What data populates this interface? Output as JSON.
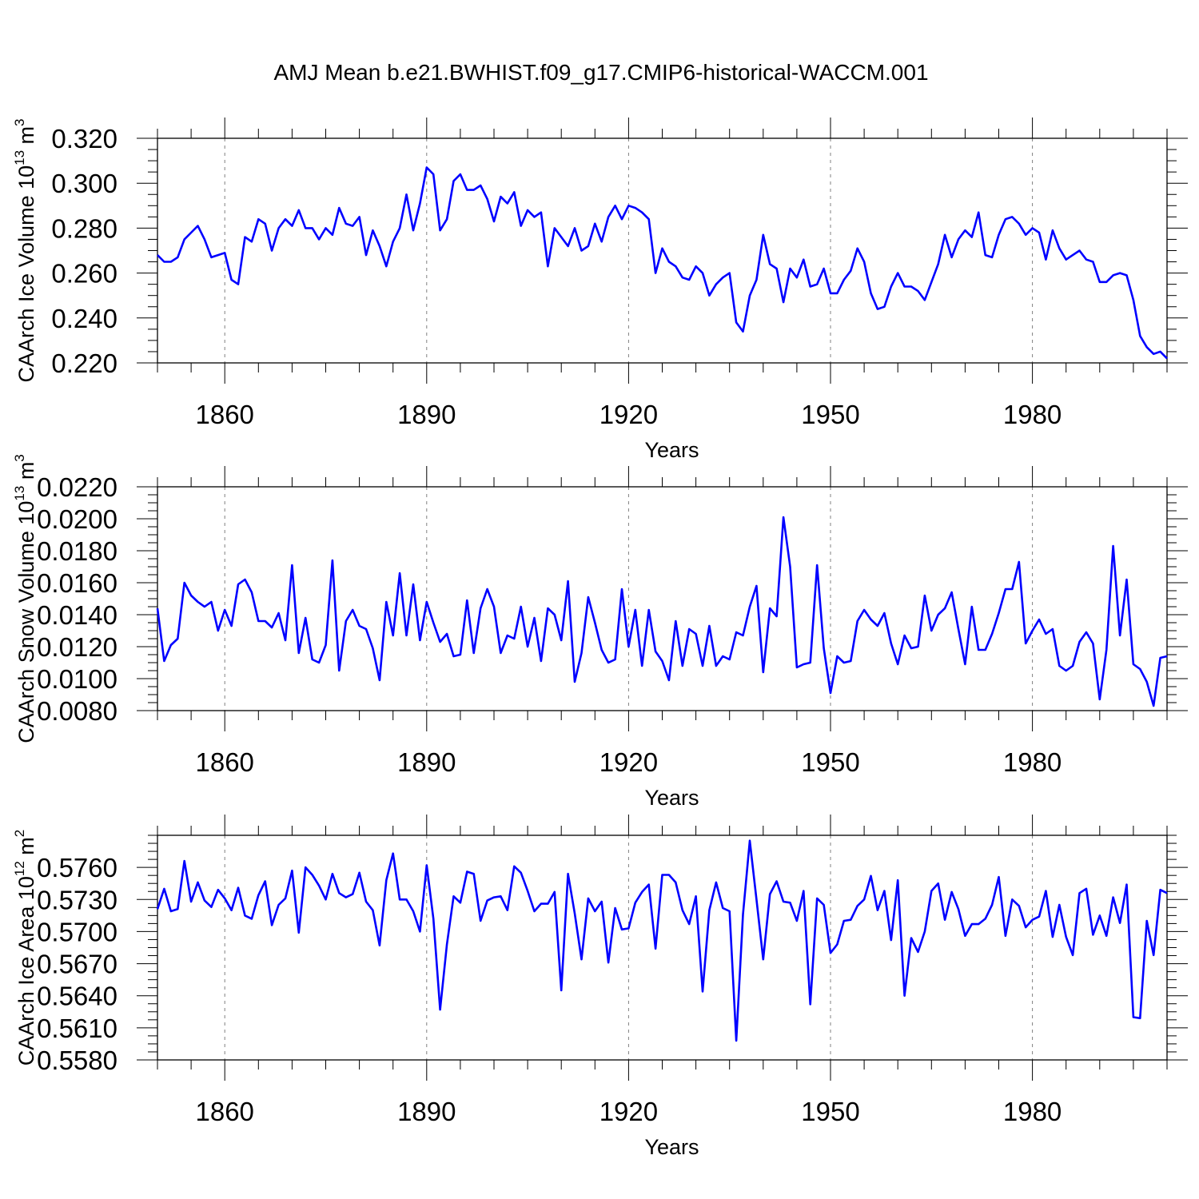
{
  "title": "AMJ Mean b.e21.BWHIST.f09_g17.CMIP6-historical-WACCM.001",
  "colors": {
    "series": "#0000ff",
    "axes": "#000000",
    "grid": "#808080"
  },
  "chart_data": [
    {
      "type": "line",
      "ylabel_main": "CAArch Ice Volume 10",
      "ylabel_exp": "13",
      "ylabel_unit": " m",
      "ylabel_unit_exp": "3",
      "xlabel": "Years",
      "xlim": [
        1850,
        2000
      ],
      "ylim": [
        0.22,
        0.32
      ],
      "yticks": [
        0.22,
        0.24,
        0.26,
        0.28,
        0.3,
        0.32
      ],
      "ytick_labels": [
        "0.220",
        "0.240",
        "0.260",
        "0.280",
        "0.300",
        "0.320"
      ],
      "xticks": [
        1860,
        1890,
        1920,
        1950,
        1980
      ],
      "xtick_labels": [
        "1860",
        "1890",
        "1920",
        "1950",
        "1980"
      ],
      "grid": "vertical dashed at major x ticks",
      "series": [
        {
          "x_start": 1850,
          "values": [
            0.268,
            0.265,
            0.265,
            0.267,
            0.275,
            0.278,
            0.281,
            0.275,
            0.267,
            0.268,
            0.269,
            0.257,
            0.255,
            0.276,
            0.274,
            0.284,
            0.282,
            0.27,
            0.28,
            0.284,
            0.281,
            0.288,
            0.28,
            0.28,
            0.275,
            0.28,
            0.277,
            0.289,
            0.282,
            0.281,
            0.285,
            0.268,
            0.279,
            0.272,
            0.263,
            0.274,
            0.28,
            0.295,
            0.279,
            0.291,
            0.307,
            0.304,
            0.279,
            0.284,
            0.301,
            0.304,
            0.297,
            0.297,
            0.299,
            0.293,
            0.283,
            0.294,
            0.291,
            0.296,
            0.281,
            0.288,
            0.285,
            0.287,
            0.263,
            0.28,
            0.276,
            0.272,
            0.28,
            0.27,
            0.272,
            0.282,
            0.274,
            0.285,
            0.29,
            0.284,
            0.29,
            0.289,
            0.287,
            0.284,
            0.26,
            0.271,
            0.265,
            0.263,
            0.258,
            0.257,
            0.263,
            0.26,
            0.25,
            0.255,
            0.258,
            0.26,
            0.238,
            0.234,
            0.25,
            0.257,
            0.277,
            0.264,
            0.262,
            0.247,
            0.262,
            0.258,
            0.266,
            0.254,
            0.255,
            0.262,
            0.251,
            0.251,
            0.257,
            0.261,
            0.271,
            0.265,
            0.251,
            0.244,
            0.245,
            0.254,
            0.26,
            0.254,
            0.254,
            0.252,
            0.248,
            0.256,
            0.264,
            0.277,
            0.267,
            0.275,
            0.279,
            0.276,
            0.287,
            0.268,
            0.267,
            0.277,
            0.284,
            0.285,
            0.282,
            0.277,
            0.28,
            0.278,
            0.266,
            0.279,
            0.271,
            0.266,
            0.268,
            0.27,
            0.266,
            0.265,
            0.256,
            0.256,
            0.259,
            0.26,
            0.259,
            0.248,
            0.232,
            0.227,
            0.224,
            0.225,
            0.222
          ]
        }
      ]
    },
    {
      "type": "line",
      "ylabel_main": "CAArch Snow Volume 10",
      "ylabel_exp": "13",
      "ylabel_unit": " m",
      "ylabel_unit_exp": "3",
      "xlabel": "Years",
      "xlim": [
        1850,
        2000
      ],
      "ylim": [
        0.008,
        0.022
      ],
      "yticks": [
        0.008,
        0.01,
        0.012,
        0.014,
        0.016,
        0.018,
        0.02,
        0.022
      ],
      "ytick_labels": [
        "0.0080",
        "0.0100",
        "0.0120",
        "0.0140",
        "0.0160",
        "0.0180",
        "0.0200",
        "0.0220"
      ],
      "xticks": [
        1860,
        1890,
        1920,
        1950,
        1980
      ],
      "xtick_labels": [
        "1860",
        "1890",
        "1920",
        "1950",
        "1980"
      ],
      "grid": "vertical dashed at major x ticks",
      "series": [
        {
          "x_start": 1850,
          "values": [
            0.0144,
            0.0111,
            0.0121,
            0.0125,
            0.016,
            0.0152,
            0.0148,
            0.0145,
            0.0148,
            0.013,
            0.0143,
            0.0133,
            0.0159,
            0.0162,
            0.0154,
            0.0136,
            0.0136,
            0.0132,
            0.0141,
            0.0124,
            0.0171,
            0.0116,
            0.0138,
            0.0112,
            0.011,
            0.0121,
            0.0174,
            0.0105,
            0.0136,
            0.0143,
            0.0133,
            0.0131,
            0.0119,
            0.0099,
            0.0148,
            0.0127,
            0.0166,
            0.0127,
            0.0159,
            0.0124,
            0.0148,
            0.0135,
            0.0123,
            0.0128,
            0.0114,
            0.0115,
            0.0149,
            0.0116,
            0.0144,
            0.0156,
            0.0145,
            0.0116,
            0.0127,
            0.0125,
            0.0145,
            0.012,
            0.0138,
            0.0111,
            0.0144,
            0.014,
            0.0124,
            0.0161,
            0.0098,
            0.0116,
            0.0151,
            0.0135,
            0.0118,
            0.011,
            0.0112,
            0.0156,
            0.012,
            0.0143,
            0.0108,
            0.0143,
            0.0117,
            0.0111,
            0.0099,
            0.0136,
            0.0108,
            0.0131,
            0.0128,
            0.0108,
            0.0133,
            0.0108,
            0.0114,
            0.0112,
            0.0129,
            0.0127,
            0.0145,
            0.0158,
            0.0104,
            0.0144,
            0.0139,
            0.0201,
            0.017,
            0.0107,
            0.0109,
            0.011,
            0.0171,
            0.0119,
            0.0091,
            0.0114,
            0.011,
            0.0111,
            0.0136,
            0.0143,
            0.0137,
            0.0133,
            0.0141,
            0.0122,
            0.0109,
            0.0127,
            0.0119,
            0.012,
            0.0152,
            0.013,
            0.014,
            0.0144,
            0.0154,
            0.0131,
            0.0109,
            0.0145,
            0.0118,
            0.0118,
            0.0128,
            0.0141,
            0.0156,
            0.0156,
            0.0173,
            0.0122,
            0.013,
            0.0137,
            0.0128,
            0.0131,
            0.0108,
            0.0105,
            0.0108,
            0.0123,
            0.0129,
            0.0122,
            0.0087,
            0.0118,
            0.0183,
            0.0127,
            0.0162,
            0.0109,
            0.0106,
            0.0098,
            0.0083,
            0.0113,
            0.0114
          ]
        }
      ]
    },
    {
      "type": "line",
      "ylabel_main": "CAArch Ice Area 10",
      "ylabel_exp": "12",
      "ylabel_unit": " m",
      "ylabel_unit_exp": "2",
      "xlabel": "Years",
      "xlim": [
        1850,
        2000
      ],
      "ylim": [
        0.558,
        0.579
      ],
      "yticks": [
        0.558,
        0.561,
        0.564,
        0.567,
        0.57,
        0.573,
        0.576
      ],
      "ytick_labels": [
        "0.5580",
        "0.5610",
        "0.5640",
        "0.5670",
        "0.5700",
        "0.5730",
        "0.5760"
      ],
      "xticks": [
        1860,
        1890,
        1920,
        1950,
        1980
      ],
      "xtick_labels": [
        "1860",
        "1890",
        "1920",
        "1950",
        "1980"
      ],
      "grid": "vertical dashed at major x ticks",
      "series": [
        {
          "x_start": 1850,
          "values": [
            0.5721,
            0.574,
            0.5719,
            0.5721,
            0.5766,
            0.5728,
            0.5746,
            0.5729,
            0.5723,
            0.5739,
            0.5731,
            0.572,
            0.5741,
            0.5715,
            0.5712,
            0.5734,
            0.5747,
            0.5706,
            0.5725,
            0.5731,
            0.5757,
            0.5699,
            0.576,
            0.5753,
            0.5743,
            0.573,
            0.5754,
            0.5736,
            0.5732,
            0.5735,
            0.5755,
            0.5728,
            0.572,
            0.5687,
            0.5748,
            0.5773,
            0.573,
            0.573,
            0.5719,
            0.57,
            0.5762,
            0.5712,
            0.5627,
            0.5688,
            0.5733,
            0.5727,
            0.5756,
            0.5754,
            0.571,
            0.5729,
            0.5732,
            0.5733,
            0.572,
            0.5761,
            0.5755,
            0.5738,
            0.5719,
            0.5726,
            0.5726,
            0.5737,
            0.5645,
            0.5754,
            0.5717,
            0.5674,
            0.5731,
            0.5719,
            0.5728,
            0.5671,
            0.5722,
            0.5702,
            0.5703,
            0.5727,
            0.5737,
            0.5744,
            0.5684,
            0.5753,
            0.5753,
            0.5746,
            0.572,
            0.5707,
            0.5733,
            0.5644,
            0.572,
            0.5746,
            0.5722,
            0.5719,
            0.5598,
            0.5716,
            0.5785,
            0.573,
            0.5674,
            0.5735,
            0.5747,
            0.5728,
            0.5727,
            0.571,
            0.5738,
            0.5632,
            0.5731,
            0.5725,
            0.568,
            0.5688,
            0.571,
            0.5711,
            0.5724,
            0.573,
            0.5752,
            0.572,
            0.5738,
            0.5692,
            0.5748,
            0.564,
            0.5694,
            0.5681,
            0.57,
            0.5738,
            0.5745,
            0.5711,
            0.5737,
            0.5721,
            0.5696,
            0.5707,
            0.5707,
            0.5712,
            0.5725,
            0.5751,
            0.5696,
            0.573,
            0.5724,
            0.5704,
            0.5711,
            0.5714,
            0.5738,
            0.5695,
            0.5725,
            0.5695,
            0.5678,
            0.5736,
            0.574,
            0.5697,
            0.5715,
            0.5696,
            0.5732,
            0.5708,
            0.5744,
            0.562,
            0.5619,
            0.571,
            0.5678,
            0.5739,
            0.5736
          ]
        }
      ]
    }
  ]
}
